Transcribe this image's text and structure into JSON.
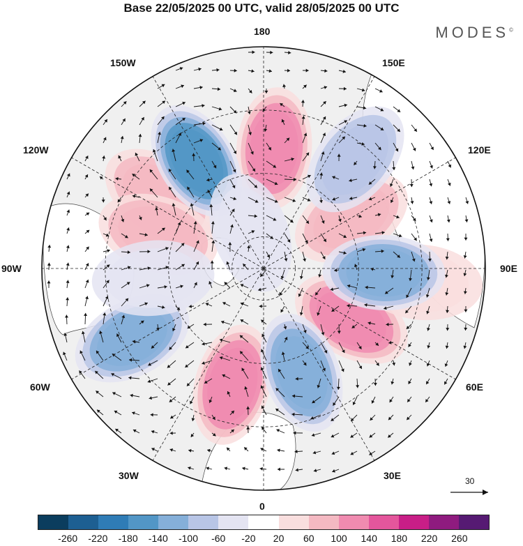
{
  "title": "Base 22/05/2025 00 UTC, valid 28/05/2025 00 UTC",
  "brand": "MODES",
  "brand_mark": "©",
  "longitude_labels": {
    "top": "180",
    "bottom": "0",
    "left": "90W",
    "right": "90E",
    "lon150w": "150W",
    "lon150e": "150E",
    "lon120w": "120W",
    "lon120e": "120E",
    "lon60w": "60W",
    "lon60e": "60E",
    "lon30w": "30W",
    "lon30e": "30E"
  },
  "reference_vector_label": "30",
  "colorbar": {
    "colors": [
      "#0b3d5e",
      "#1d5f92",
      "#2f7cb6",
      "#5296c6",
      "#85afd9",
      "#b8c5e6",
      "#e4e4f2",
      "#ffffff",
      "#f9dede",
      "#f4b9c2",
      "#f08bb0",
      "#e4569c",
      "#c81e87",
      "#8f1b7f",
      "#561a73"
    ],
    "tick_labels": [
      "-260",
      "-220",
      "-180",
      "-140",
      "-100",
      "-60",
      "-20",
      "20",
      "60",
      "100",
      "140",
      "180",
      "220",
      "260"
    ]
  },
  "anomalies": [
    {
      "kind": "high",
      "lon": 175,
      "lat": 52,
      "value": 120
    },
    {
      "kind": "high",
      "lon": -125,
      "lat": 50,
      "value": 80
    },
    {
      "kind": "high",
      "lon": -108,
      "lat": 55,
      "value": 90
    },
    {
      "kind": "high",
      "lon": 120,
      "lat": 58,
      "value": 90
    },
    {
      "kind": "high",
      "lon": 60,
      "lat": 58,
      "value": 110
    },
    {
      "kind": "high",
      "lon": -15,
      "lat": 52,
      "value": 110
    },
    {
      "kind": "high",
      "lon": 85,
      "lat": 40,
      "value": 50
    },
    {
      "kind": "low",
      "lon": -148,
      "lat": 50,
      "value": -150
    },
    {
      "kind": "low",
      "lon": 140,
      "lat": 45,
      "value": -90
    },
    {
      "kind": "low",
      "lon": 88,
      "lat": 52,
      "value": -130
    },
    {
      "kind": "low",
      "lon": 20,
      "lat": 55,
      "value": -120
    },
    {
      "kind": "low",
      "lon": -62,
      "lat": 43,
      "value": -120
    },
    {
      "kind": "low",
      "lon": -160,
      "lat": 78,
      "value": -60
    },
    {
      "kind": "low",
      "lon": -85,
      "lat": 55,
      "value": -30
    }
  ]
}
